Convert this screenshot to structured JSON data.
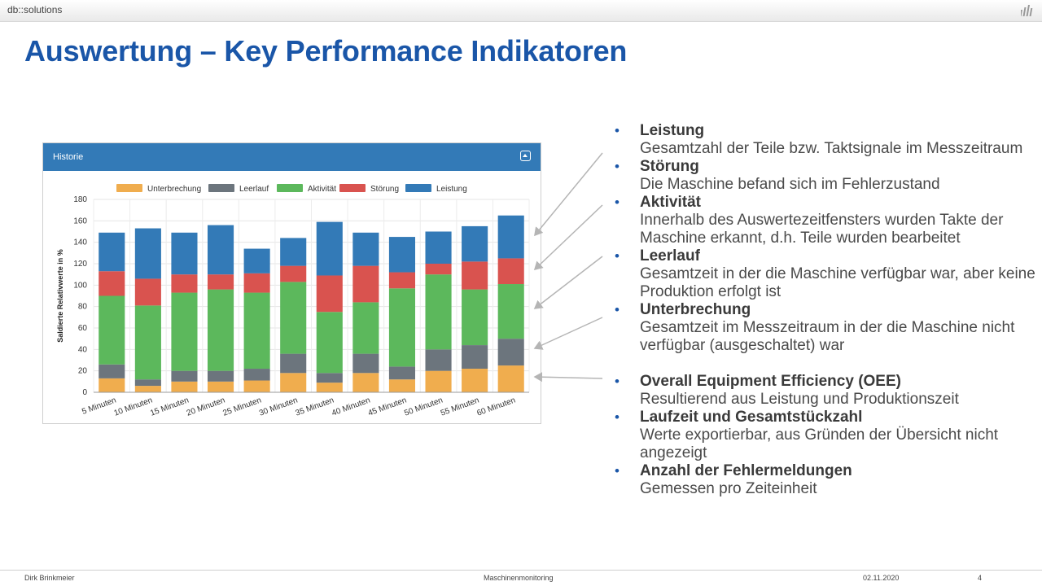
{
  "topbar": {
    "brand": "db::solutions",
    "logo_icon": "bars-logo-icon"
  },
  "slide": {
    "title": "Auswertung – Key Performance Indikatoren"
  },
  "widget": {
    "title": "Historie",
    "collapse_icon": "chevron-up-icon"
  },
  "chart_data": {
    "type": "bar",
    "stacked": true,
    "ylabel": "Saldierte Relativwerte in %",
    "ylim": [
      0,
      180
    ],
    "yticks": [
      0,
      20,
      40,
      60,
      80,
      100,
      120,
      140,
      160,
      180
    ],
    "grid": true,
    "legend_position": "top",
    "categories": [
      "5 Minuten",
      "10 Minuten",
      "15 Minuten",
      "20 Minuten",
      "25 Minuten",
      "30 Minuten",
      "35 Minuten",
      "40 Minuten",
      "45 Minuten",
      "50 Minuten",
      "55 Minuten",
      "60 Minuten"
    ],
    "series": [
      {
        "name": "Unterbrechung",
        "color": "#f0ad4e",
        "values": [
          13,
          6,
          10,
          10,
          11,
          18,
          9,
          18,
          12,
          20,
          22,
          25
        ]
      },
      {
        "name": "Leerlauf",
        "color": "#6c757d",
        "values": [
          13,
          6,
          10,
          10,
          11,
          18,
          9,
          18,
          12,
          20,
          22,
          25
        ]
      },
      {
        "name": "Aktivität",
        "color": "#5cb85c",
        "values": [
          64,
          69,
          73,
          76,
          71,
          67,
          57,
          48,
          73,
          70,
          52,
          51
        ]
      },
      {
        "name": "Störung",
        "color": "#d9534f",
        "values": [
          23,
          25,
          17,
          14,
          18,
          15,
          34,
          34,
          15,
          10,
          26,
          24
        ]
      },
      {
        "name": "Leistung",
        "color": "#337ab7",
        "values": [
          36,
          47,
          39,
          46,
          23,
          26,
          50,
          31,
          33,
          30,
          33,
          40
        ]
      }
    ]
  },
  "bullets": [
    {
      "title": "Leistung",
      "desc": "Gesamtzahl der Teile bzw. Taktsignale im Messzeitraum"
    },
    {
      "title": "Störung",
      "desc": "Die Maschine befand sich im Fehlerzustand"
    },
    {
      "title": "Aktivität",
      "desc": "Innerhalb des Auswertezeitfensters wurden Takte der Maschine erkannt, d.h. Teile wurden bearbeitet"
    },
    {
      "title": "Leerlauf",
      "desc": "Gesamtzeit in der die Maschine verfügbar war, aber keine Produktion erfolgt ist"
    },
    {
      "title": "Unterbrechung",
      "desc": "Gesamtzeit im Messzeitraum in der die Maschine nicht verfügbar (ausgeschaltet) war"
    },
    {
      "title": "Overall Equipment Efficiency (OEE)",
      "desc": "Resultierend aus Leistung und Produktionszeit"
    },
    {
      "title": "Laufzeit und Gesamtstückzahl",
      "desc": "Werte exportierbar, aus Gründen der Übersicht nicht angezeigt"
    },
    {
      "title": "Anzahl der Fehlermeldungen",
      "desc": "Gemessen pro Zeiteinheit"
    }
  ],
  "footer": {
    "author": "Dirk Brinkmeier",
    "topic": "Maschinenmonitoring",
    "date": "02.11.2020",
    "page": "4"
  }
}
